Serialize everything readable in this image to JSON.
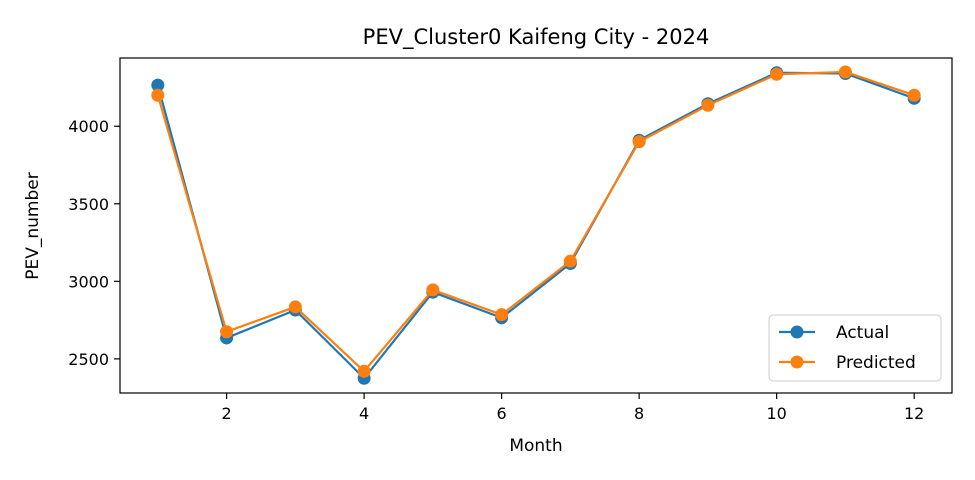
{
  "chart_data": {
    "type": "line",
    "title": "PEV_Cluster0 Kaifeng City - 2024",
    "xlabel": "Month",
    "ylabel": "PEV_number",
    "x": [
      1,
      2,
      3,
      4,
      5,
      6,
      7,
      8,
      9,
      10,
      11,
      12
    ],
    "xlim": [
      0.45,
      12.55
    ],
    "ylim": [
      2280,
      4440
    ],
    "xticks": [
      2,
      4,
      6,
      8,
      10,
      12
    ],
    "yticks": [
      2500,
      3000,
      3500,
      4000
    ],
    "grid": false,
    "legend_position": "lower-right",
    "series": [
      {
        "name": "Actual",
        "color": "#1f77b4",
        "values": [
          4265,
          2635,
          2815,
          2375,
          2930,
          2765,
          3115,
          3910,
          4145,
          4345,
          4340,
          4180
        ]
      },
      {
        "name": "Predicted",
        "color": "#ff7f0e",
        "values": [
          4200,
          2675,
          2835,
          2420,
          2945,
          2785,
          3130,
          3900,
          4135,
          4335,
          4350,
          4200
        ]
      }
    ]
  }
}
